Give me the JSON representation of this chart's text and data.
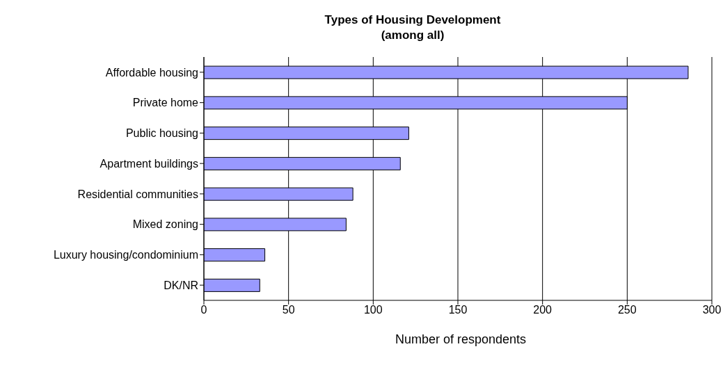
{
  "chart_data": {
    "type": "bar",
    "orientation": "horizontal",
    "title": "Types of Housing Development",
    "subtitle": "(among all)",
    "xlabel": "Number of respondents",
    "categories": [
      "Affordable housing",
      "Private home",
      "Public housing",
      "Apartment buildings",
      "Residential communities",
      "Mixed zoning",
      "Luxury housing/condominium",
      "DK/NR"
    ],
    "values": [
      286,
      250,
      121,
      116,
      88,
      84,
      36,
      33
    ],
    "color": "#9999ff",
    "xlim": [
      0,
      300
    ],
    "xticks": [
      0,
      50,
      100,
      150,
      200,
      250,
      300
    ],
    "grid": "x"
  }
}
